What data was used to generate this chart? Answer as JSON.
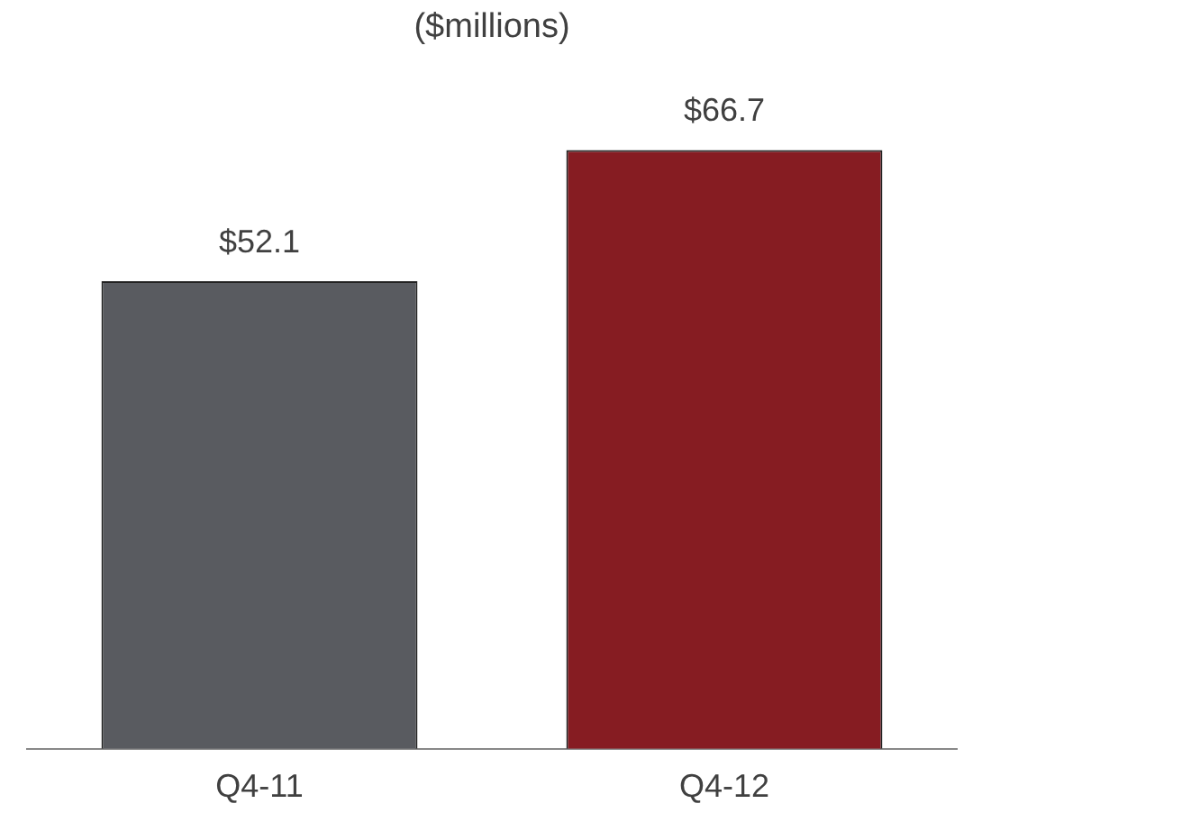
{
  "chart_data": {
    "type": "bar",
    "title": "($millions)",
    "categories": [
      "Q4-11",
      "Q4-12"
    ],
    "values": [
      52.1,
      66.7
    ],
    "colors": [
      "#595b60",
      "#861c22"
    ],
    "value_labels": [
      "$52.1",
      "$66.7"
    ],
    "grid": false,
    "legend": false
  }
}
